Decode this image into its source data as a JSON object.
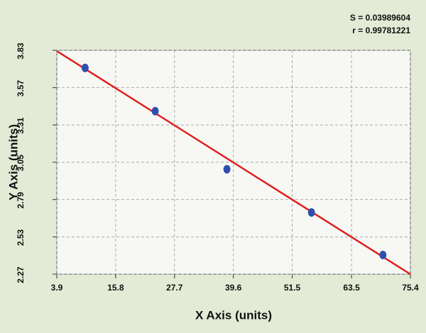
{
  "chart_data": {
    "type": "scatter",
    "annotations": [
      "S = 0.03989604",
      "r = 0.99781221"
    ],
    "x_label": "X Axis (units)",
    "y_label": "Y Axis (units)",
    "series": [
      {
        "x": [
          9.63,
          23.8,
          38.3,
          55.4,
          69.85
        ],
        "values": [
          3.707,
          3.406,
          3.001,
          2.7,
          2.404
        ],
        "color": "#2f4fae"
      }
    ],
    "fit_line": {
      "x": [
        3.9,
        75.4
      ],
      "values": [
        3.825,
        2.27
      ],
      "color": "#e02020"
    },
    "xlim": [
      3.9,
      75.4
    ],
    "xticks": [
      3.9,
      15.8,
      27.7,
      39.6,
      51.5,
      63.5,
      75.4
    ],
    "ylim": [
      2.27,
      3.83
    ],
    "yticks": [
      2.27,
      2.53,
      2.79,
      3.05,
      3.31,
      3.57,
      3.83
    ],
    "grid": true
  }
}
